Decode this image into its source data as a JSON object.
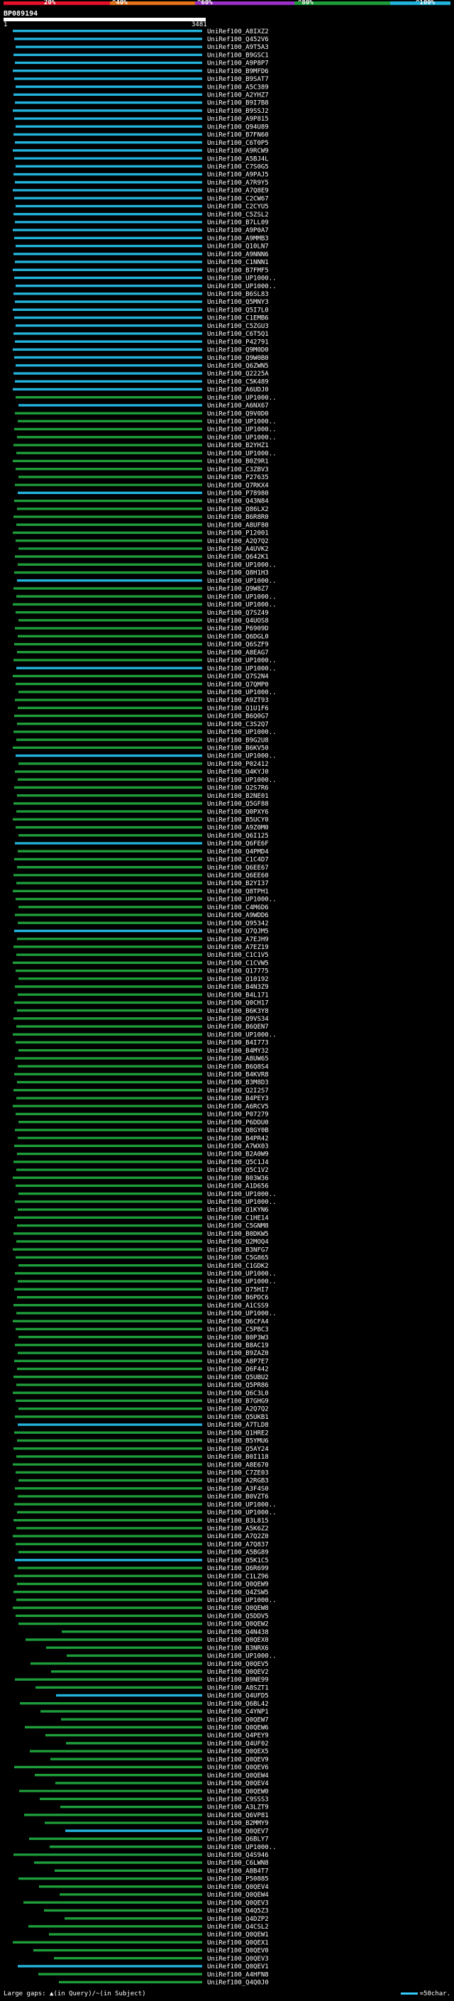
{
  "header": {
    "ticks": [
      "20%",
      "^40%",
      "^60%",
      "^80%",
      "^100%"
    ],
    "colorbar": [
      "#e8102a",
      "#e8741a",
      "#9b30c8",
      "#1e9e3a",
      "#22b4dc"
    ],
    "query_id": "BP089194",
    "query_start": "1",
    "query_end": "3481"
  },
  "footer": {
    "gaps_label": "Large gaps: ▲(in Query)/~(in Subject)",
    "scale_label": "=50char."
  },
  "chart_data": {
    "type": "bar",
    "query_length": 3481,
    "colors": {
      "high": "#22b4dc",
      "mid": "#1e9e3a"
    },
    "hits": [
      "UniRef100_A8IXZ2",
      "UniRef100_Q452V6",
      "UniRef100_A9T5A3",
      "UniRef100_B9GSC1",
      "UniRef100_A9P8P7",
      "UniRef100_B9MFD6",
      "UniRef100_B9SAT7",
      "UniRef100_A5C389",
      "UniRef100_A2YHZ7",
      "UniRef100_B9I7B8",
      "UniRef100_B9SSJ2",
      "UniRef100_A9P815",
      "UniRef100_Q94U89",
      "UniRef100_B7FN60",
      "UniRef100_C6T0P5",
      "UniRef100_A9RCW9",
      "UniRef100_A5BJ4L",
      "UniRef100_C7S0G5",
      "UniRef100_A9PAJ5",
      "UniRef100_A7R9Y5",
      "UniRef100_A7Q8E9",
      "UniRef100_C2CW67",
      "UniRef100_C2CYU5",
      "UniRef100_C5ZSL2",
      "UniRef100_B7LL09",
      "UniRef100_A9P0A7",
      "UniRef100_A9MMB3",
      "UniRef100_Q10LN7",
      "UniRef100_A9NNN6",
      "UniRef100_C1NNN1",
      "UniRef100_B7FMF5",
      "UniRef100_UP1000..",
      "UniRef100_UP1000..",
      "UniRef100_B6SL83",
      "UniRef100_Q5MNY3",
      "UniRef100_Q5I7L0",
      "UniRef100_C1EMB6",
      "UniRef100_C5ZGU3",
      "UniRef100_C6T5Q1",
      "UniRef100_P42791",
      "UniRef100_Q9M0D0",
      "UniRef100_Q9W0B0",
      "UniRef100_Q6ZWN5",
      "UniRef100_Q2225A",
      "UniRef100_C5K489",
      "UniRef100_A6UDJ0",
      "UniRef100_UP1000..",
      "UniRef100_A6NX67",
      "UniRef100_Q9V0D0",
      "UniRef100_UP1000..",
      "UniRef100_UP1000..",
      "UniRef100_UP1000..",
      "UniRef100_B2YHZ1",
      "UniRef100_UP1000..",
      "UniRef100_B0Z9R1",
      "UniRef100_C3ZBV3",
      "UniRef100_P27635",
      "UniRef100_Q7RKX4",
      "UniRef100_P78980",
      "UniRef100_Q43N84",
      "UniRef100_Q86LX2",
      "UniRef100_B6R8R0",
      "UniRef100_A8UF80",
      "UniRef100_P12001",
      "UniRef100_A2Q7Q2",
      "UniRef100_A4UVK2",
      "UniRef100_Q642K1",
      "UniRef100_UP1000..",
      "UniRef100_Q8H1H3",
      "UniRef100_UP1000..",
      "UniRef100_Q9W8Z7",
      "UniRef100_UP1000..",
      "UniRef100_UP1000..",
      "UniRef100_Q7SZ49",
      "UniRef100_Q4UOS8",
      "UniRef100_P6909D",
      "UniRef100_Q6DGL0",
      "UniRef100_Q6SZF9",
      "UniRef100_A8EAG7",
      "UniRef100_UP1000..",
      "UniRef100_UP1000..",
      "UniRef100_Q7S2N4",
      "UniRef100_Q7QMP0",
      "UniRef100_UP1000..",
      "UniRef100_A9ZT93",
      "UniRef100_Q1U1F6",
      "UniRef100_B6Q0G7",
      "UniRef100_C3S2Q7",
      "UniRef100_UP1000..",
      "UniRef100_B9G2U8",
      "UniRef100_B6KV50",
      "UniRef100_UP1000..",
      "UniRef100_P02412",
      "UniRef100_Q4KYJ0",
      "UniRef100_UP1000..",
      "UniRef100_Q2S7R6",
      "UniRef100_B2NE01",
      "UniRef100_Q5GF88",
      "UniRef100_Q0PXY6",
      "UniRef100_B5UCY0",
      "UniRef100_A9Z0M0",
      "UniRef100_Q6I125",
      "UniRef100_Q6FE6F",
      "UniRef100_Q4PMD4",
      "UniRef100_C1C4D7",
      "UniRef100_Q6EE67",
      "UniRef100_Q6EE60",
      "UniRef100_B2YI37",
      "UniRef100_Q8TPH1",
      "UniRef100_UP1000..",
      "UniRef100_C4M6D6",
      "UniRef100_A9WDD6",
      "UniRef100_Q95342",
      "UniRef100_Q7QJM5",
      "UniRef100_A7EJH9",
      "UniRef100_A7EZ19",
      "UniRef100_C1C1V5",
      "UniRef100_C1CVW5",
      "UniRef100_Q17775",
      "UniRef100_Q10192",
      "UniRef100_B4N3Z9",
      "UniRef100_B4L171",
      "UniRef100_Q0CH17",
      "UniRef100_B6K3Y8",
      "UniRef100_Q9VS34",
      "UniRef100_B6QEN7",
      "UniRef100_UP1000..",
      "UniRef100_B4I773",
      "UniRef100_B4MY32",
      "UniRef100_A8UW65",
      "UniRef100_B6Q8S4",
      "UniRef100_B4KVR8",
      "UniRef100_B3M8D3",
      "UniRef100_Q2I2S7",
      "UniRef100_B4PEY3",
      "UniRef100_A6RCV5",
      "UniRef100_P07279",
      "UniRef100_P6DDU0",
      "UniRef100_Q8GY0B",
      "UniRef100_B4PR42",
      "UniRef100_A7WX03",
      "UniRef100_B2A0W9",
      "UniRef100_Q5C1J4",
      "UniRef100_Q5C1V2",
      "UniRef100_B03W36",
      "UniRef100_A1D656",
      "UniRef100_UP1000..",
      "UniRef100_UP1000..",
      "UniRef100_Q1KYN6",
      "UniRef100_C1HE14",
      "UniRef100_C5GNM8",
      "UniRef100_B0DKW5",
      "UniRef100_Q2MOQ4",
      "UniRef100_B3NFG7",
      "UniRef100_C5G865",
      "UniRef100_C1GDK2",
      "UniRef100_UP1000..",
      "UniRef100_UP1000..",
      "UniRef100_Q75HI7",
      "UniRef100_B6PDC6",
      "UniRef100_A1CSS9",
      "UniRef100_UP1000..",
      "UniRef100_Q6CFA4",
      "UniRef100_C5PBC3",
      "UniRef100_B0P3W3",
      "UniRef100_B8AC19",
      "UniRef100_B9ZAZ0",
      "UniRef100_A8P7E7",
      "UniRef100_Q6F442",
      "UniRef100_Q5UBU2",
      "UniRef100_Q5PR86",
      "UniRef100_Q6C3L0",
      "UniRef100_B7GHG9",
      "UniRef100_A2Q7Q2",
      "UniRef100_Q5UKB1",
      "UniRef100_A7TLD8",
      "UniRef100_Q1HRE2",
      "UniRef100_B5YMU6",
      "UniRef100_Q5AY24",
      "UniRef100_B0I118",
      "UniRef100_A8E670",
      "UniRef100_C7ZE03",
      "UniRef100_A2RGB3",
      "UniRef100_A3F4S0",
      "UniRef100_B0VZT6",
      "UniRef100_UP1000..",
      "UniRef100_UP1000..",
      "UniRef100_B3L815",
      "UniRef100_A5K6Z2",
      "UniRef100_A7Q2Z0",
      "UniRef100_A7Q837",
      "UniRef100_A5BG89",
      "UniRef100_Q5K1C5",
      "UniRef100_Q6R699",
      "UniRef100_C1LZ96",
      "UniRef100_Q0QEW9",
      "UniRef100_Q4ZSW5",
      "UniRef100_UP1000..",
      "UniRef100_Q0QEW8",
      "UniRef100_Q5DDV5",
      "UniRef100_Q0QEW2",
      "UniRef100_Q4N438",
      "UniRef100_Q0QEX0",
      "UniRef100_B3NRX6",
      "UniRef100_UP1000..",
      "UniRef100_Q0QEV5",
      "UniRef100_Q0QEV2",
      "UniRef100_B9NE99",
      "UniRef100_A8SZT1",
      "UniRef100_Q4UFD5",
      "UniRef100_Q6BL42",
      "UniRef100_C4YNP1",
      "UniRef100_Q0QEW7",
      "UniRef100_Q0QEW6",
      "UniRef100_Q4PEY9",
      "UniRef100_Q4UF02",
      "UniRef100_Q0QEX5",
      "UniRef100_Q0QEV9",
      "UniRef100_Q0QEV6",
      "UniRef100_Q0QEW4",
      "UniRef100_Q0QEV4",
      "UniRef100_Q0QEW0",
      "UniRef100_C9SSS3",
      "UniRef100_A3LZT9",
      "UniRef100_Q6VP81",
      "UniRef100_B2MMY9",
      "UniRef100_Q0QEV7",
      "UniRef100_Q6BLY7",
      "UniRef100_UP1000..",
      "UniRef100_Q4S946",
      "UniRef100_C6LWN8",
      "UniRef100_A8B4T7",
      "UniRef100_P50885",
      "UniRef100_Q0QEV4",
      "UniRef100_Q0QEW4",
      "UniRef100_Q0QEV3",
      "UniRef100_Q4Q5Z3",
      "UniRef100_Q4DZP2",
      "UniRef100_Q4CSL2",
      "UniRef100_Q0QEW1",
      "UniRef100_Q0QEX1",
      "UniRef100_Q0QEV0",
      "UniRef100_Q0QEV3",
      "UniRef100_Q0QEV1",
      "UniRef100_A4HFN8",
      "UniRef100_Q4Q0J0"
    ]
  }
}
